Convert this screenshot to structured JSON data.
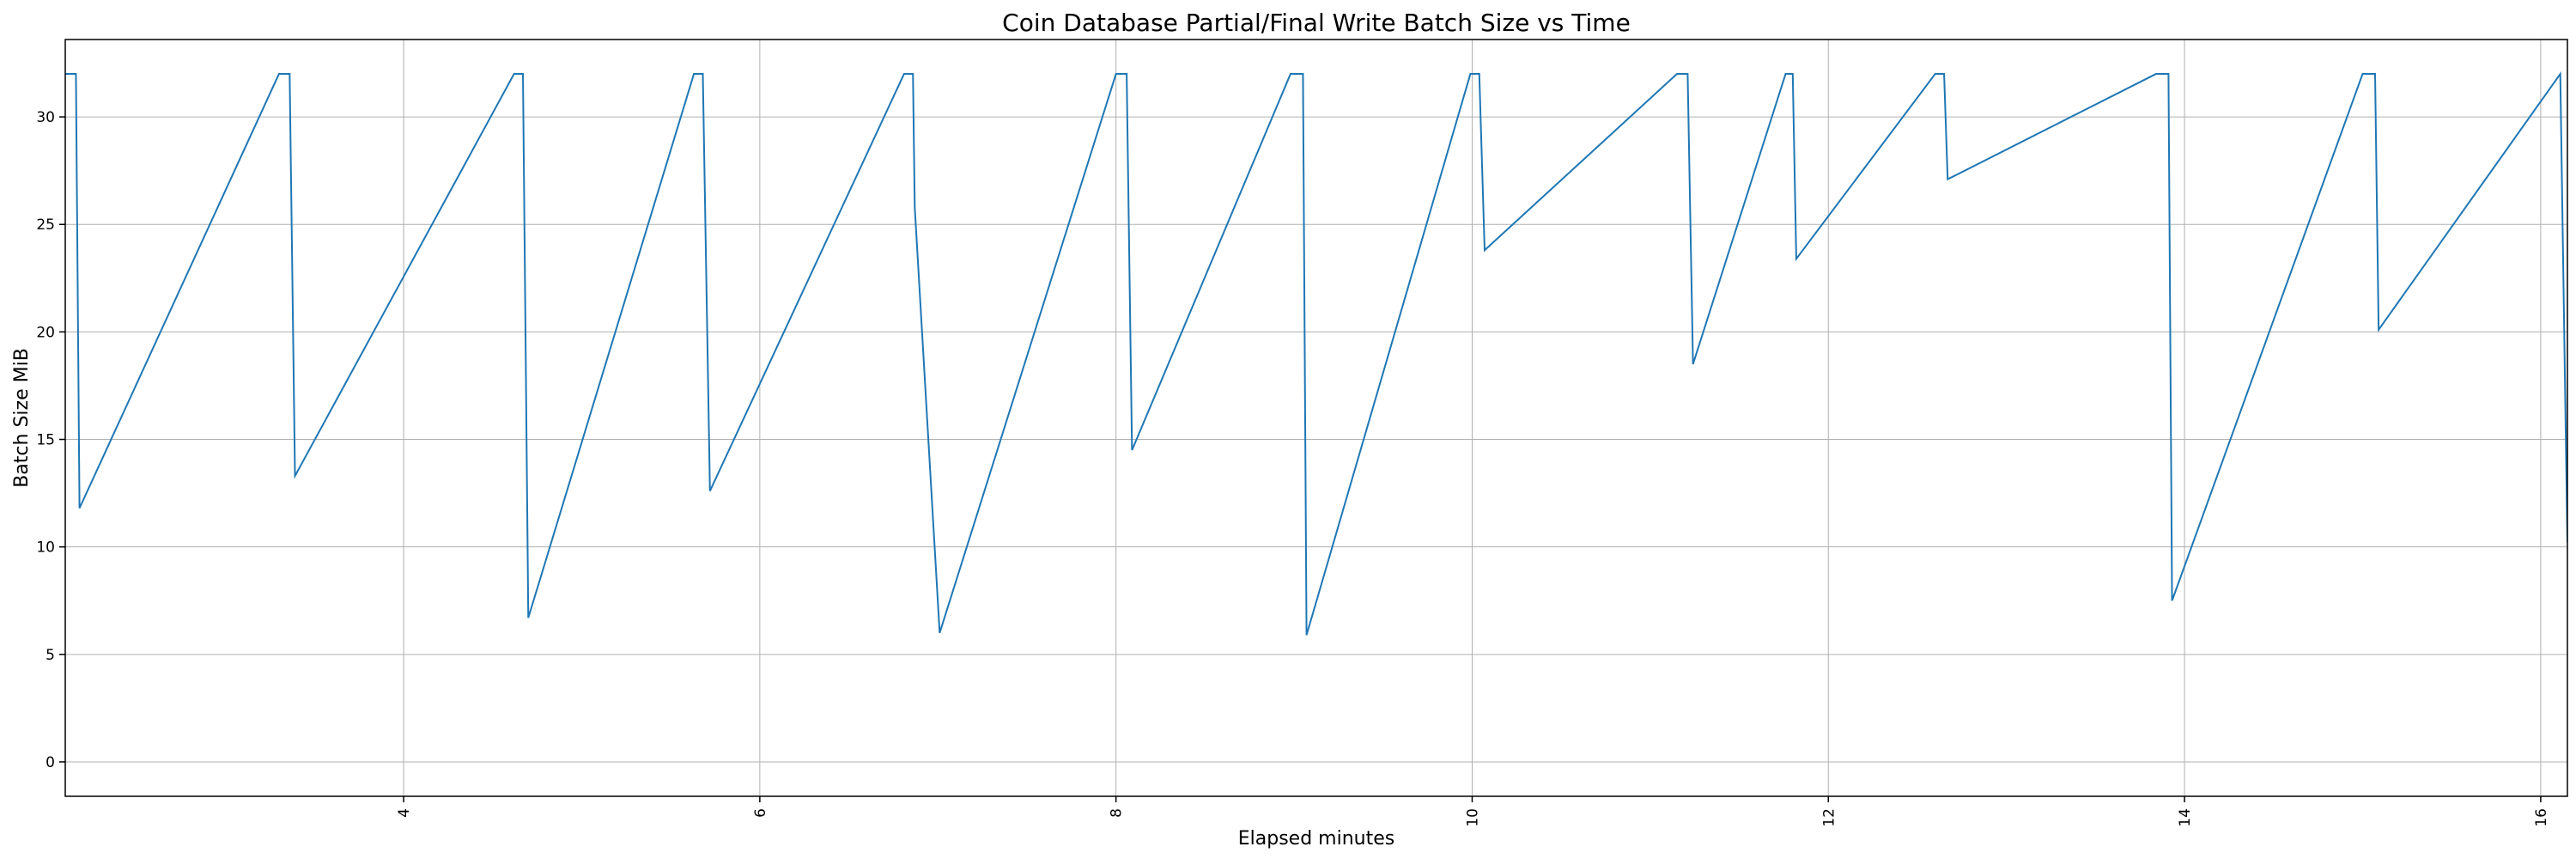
{
  "chart_data": {
    "type": "line",
    "title": "Coin Database Partial/Final Write Batch Size vs Time",
    "xlabel": "Elapsed minutes",
    "ylabel": "Batch Size MiB",
    "xlim": [
      2.1,
      16.15
    ],
    "ylim": [
      -1.6,
      33.6
    ],
    "xticks": [
      4,
      6,
      8,
      10,
      12,
      14,
      16
    ],
    "yticks": [
      0,
      5,
      10,
      15,
      20,
      25,
      30
    ],
    "xtick_labels_rotated": true,
    "grid": true,
    "line_color": "#1f77b4",
    "series": [
      {
        "x": [
          2.1,
          2.16,
          2.18,
          3.3,
          3.36,
          3.39,
          4.62,
          4.67,
          4.7,
          5.63,
          5.68,
          5.72,
          6.81,
          6.86,
          6.87,
          7.01,
          8.0,
          8.06,
          8.09,
          8.98,
          9.05,
          9.07,
          9.99,
          10.04,
          10.07,
          11.15,
          11.21,
          11.24,
          11.76,
          11.8,
          11.82,
          12.6,
          12.65,
          12.67,
          13.84,
          13.91,
          13.93,
          15.0,
          15.07,
          15.09,
          16.11,
          16.15
        ],
        "y": [
          32.0,
          32.0,
          11.8,
          32.0,
          32.0,
          13.3,
          32.0,
          32.0,
          6.7,
          32.0,
          32.0,
          12.6,
          32.0,
          32.0,
          25.8,
          6.0,
          32.0,
          32.0,
          14.5,
          32.0,
          32.0,
          5.9,
          32.0,
          32.0,
          23.8,
          32.0,
          32.0,
          18.5,
          32.0,
          32.0,
          23.4,
          32.0,
          32.0,
          27.1,
          32.0,
          32.0,
          7.5,
          32.0,
          32.0,
          20.1,
          32.0,
          10.2
        ]
      }
    ]
  }
}
